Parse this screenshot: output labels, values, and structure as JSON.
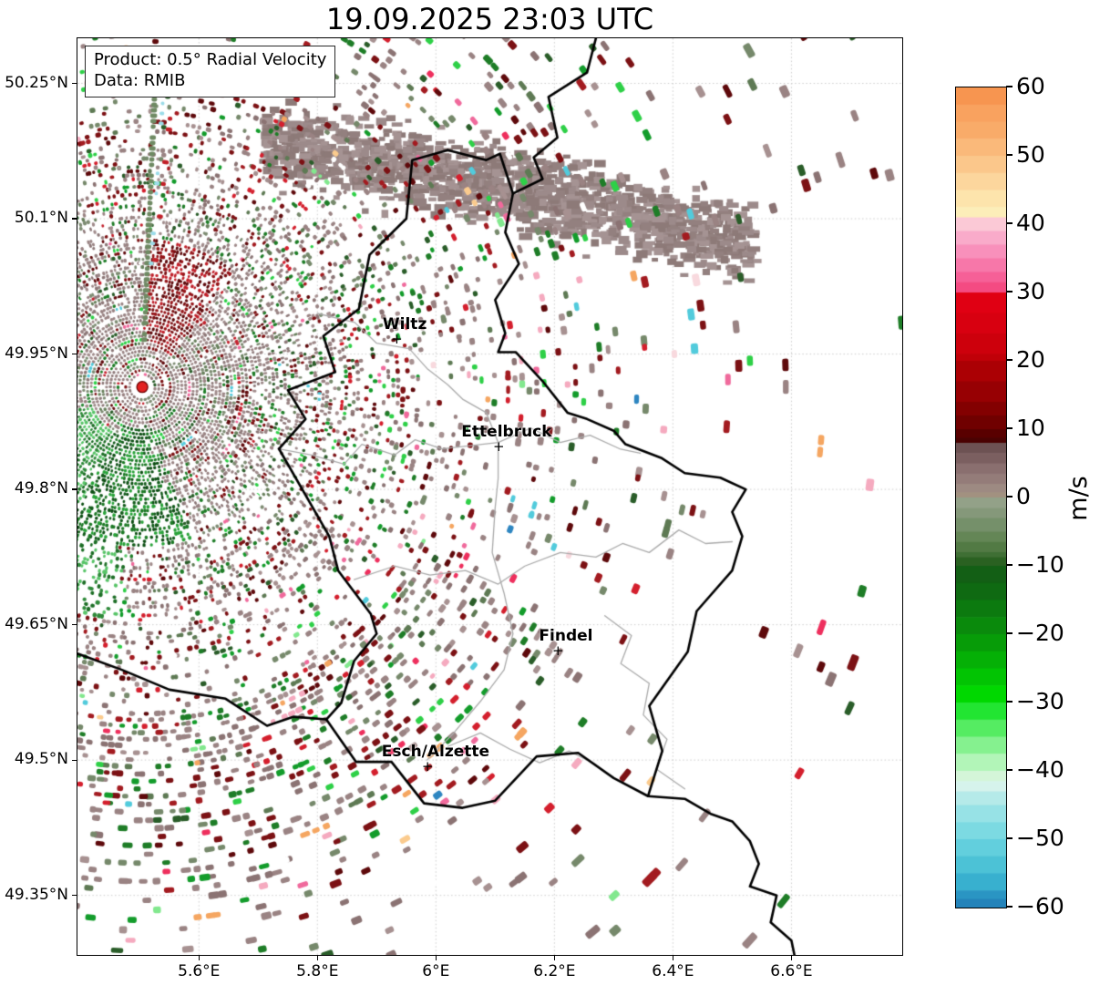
{
  "title": "19.09.2025 23:03 UTC",
  "info_box": {
    "line1": "Product: 0.5° Radial Velocity",
    "line2": "Data: RMIB"
  },
  "chart_data": {
    "type": "radar-velocity-map",
    "title": "19.09.2025 23:03 UTC",
    "product": "0.5° Radial Velocity",
    "data_source": "RMIB",
    "projection": {
      "lon_min": 5.395,
      "lon_max": 6.787,
      "lat_min": 49.284,
      "lat_max": 50.3
    },
    "x_axis": {
      "ticks": [
        {
          "lon": 5.6,
          "label": "5.6°E"
        },
        {
          "lon": 5.8,
          "label": "5.8°E"
        },
        {
          "lon": 6.0,
          "label": "6°E"
        },
        {
          "lon": 6.2,
          "label": "6.2°E"
        },
        {
          "lon": 6.4,
          "label": "6.4°E"
        },
        {
          "lon": 6.6,
          "label": "6.6°E"
        }
      ]
    },
    "y_axis": {
      "ticks": [
        {
          "lat": 50.25,
          "label": "50.25°N"
        },
        {
          "lat": 50.1,
          "label": "50.1°N"
        },
        {
          "lat": 49.95,
          "label": "49.95°N"
        },
        {
          "lat": 49.8,
          "label": "49.8°N"
        },
        {
          "lat": 49.65,
          "label": "49.65°N"
        },
        {
          "lat": 49.5,
          "label": "49.5°N"
        },
        {
          "lat": 49.35,
          "label": "49.35°N"
        }
      ]
    },
    "grid": {
      "color": "#c8c8c8",
      "dash": [
        1.5,
        2.6
      ],
      "width": 0.9
    },
    "cities": [
      {
        "name": "Wiltz",
        "lon": 5.932,
        "lat": 49.966
      },
      {
        "name": "Ettelbruck",
        "lon": 6.104,
        "lat": 49.847
      },
      {
        "name": "Findel",
        "lon": 6.204,
        "lat": 49.62
      },
      {
        "name": "Esch/Alzette",
        "lon": 5.984,
        "lat": 49.492
      }
    ],
    "radar_site": {
      "lon": 5.5044,
      "lat": 49.9135,
      "dot_color": "#e32222",
      "dot_edge": "#6b0000",
      "ring_color": "#ffffff"
    },
    "colorbar": {
      "title": "m/s",
      "vmin": -60,
      "vmax": 60,
      "ticks": [
        [
          60,
          "60"
        ],
        [
          50,
          "50"
        ],
        [
          40,
          "40"
        ],
        [
          30,
          "30"
        ],
        [
          20,
          "20"
        ],
        [
          10,
          "10"
        ],
        [
          0,
          "0"
        ],
        [
          -10,
          "−10"
        ],
        [
          -20,
          "−20"
        ],
        [
          -30,
          "−30"
        ],
        [
          -40,
          "−40"
        ],
        [
          -50,
          "−50"
        ],
        [
          -60,
          "−60"
        ]
      ],
      "stops": [
        [
          60,
          "#f79550"
        ],
        [
          57.5,
          "#f9a25f"
        ],
        [
          55,
          "#f9ab69"
        ],
        [
          52.5,
          "#fab97a"
        ],
        [
          50,
          "#fbc78b"
        ],
        [
          47.5,
          "#fcd69d"
        ],
        [
          45,
          "#fde4ac"
        ],
        [
          42.5,
          "#fceeb9"
        ],
        [
          41,
          "#fbc9d6"
        ],
        [
          39,
          "#f9abca"
        ],
        [
          37,
          "#f890bb"
        ],
        [
          35,
          "#f777a9"
        ],
        [
          33,
          "#f66097"
        ],
        [
          31.5,
          "#f44b82"
        ],
        [
          30,
          "#e00013"
        ],
        [
          27,
          "#d80010"
        ],
        [
          24,
          "#cd000c"
        ],
        [
          21,
          "#c00008"
        ],
        [
          20,
          "#ab0004"
        ],
        [
          17,
          "#970003"
        ],
        [
          14,
          "#830001"
        ],
        [
          12,
          "#700000"
        ],
        [
          10,
          "#590000"
        ],
        [
          8.75,
          "#4a0202"
        ],
        [
          8,
          "#6d5253"
        ],
        [
          6.5,
          "#7b5f60"
        ],
        [
          5,
          "#8a6f6f"
        ],
        [
          3.5,
          "#947c79"
        ],
        [
          2,
          "#9d8a82"
        ],
        [
          0.75,
          "#a29180"
        ],
        [
          0,
          "#93a188"
        ],
        [
          -1.5,
          "#85987a"
        ],
        [
          -3,
          "#75906a"
        ],
        [
          -5,
          "#648656"
        ],
        [
          -6.5,
          "#527a44"
        ],
        [
          -8,
          "#3f6f34"
        ],
        [
          -8.75,
          "#2a6121"
        ],
        [
          -10,
          "#135f15"
        ],
        [
          -12.5,
          "#0f6a12"
        ],
        [
          -15,
          "#0c7a0f"
        ],
        [
          -17.5,
          "#0a8a0c"
        ],
        [
          -20,
          "#079c08"
        ],
        [
          -22.5,
          "#05b006"
        ],
        [
          -25,
          "#02c403"
        ],
        [
          -27.5,
          "#00d800"
        ],
        [
          -30,
          "#22e532"
        ],
        [
          -32.5,
          "#55ec62"
        ],
        [
          -35,
          "#85f18f"
        ],
        [
          -37.5,
          "#b2f5b8"
        ],
        [
          -40,
          "#d4f5d8"
        ],
        [
          -41.5,
          "#d6f3ec"
        ],
        [
          -43,
          "#b5eae9"
        ],
        [
          -45,
          "#97e2e6"
        ],
        [
          -47.5,
          "#7cdae2"
        ],
        [
          -50,
          "#62cfdd"
        ],
        [
          -52.5,
          "#4cc2d6"
        ],
        [
          -55,
          "#38b0cf"
        ],
        [
          -57.5,
          "#2a95c3"
        ],
        [
          -58.75,
          "#2383ba"
        ],
        [
          -60,
          "#1f78b4"
        ]
      ]
    },
    "borders": {
      "country_color": "#000000",
      "country_width": 2.6,
      "region_color": "#ababab",
      "region_width": 1.3,
      "country": [
        [
          [
            6.27,
            50.3
          ],
          [
            6.255,
            50.262
          ],
          [
            6.19,
            50.235
          ],
          [
            6.205,
            50.19
          ],
          [
            6.165,
            50.168
          ],
          [
            6.18,
            50.144
          ],
          [
            6.13,
            50.128
          ]
        ],
        [
          [
            6.02,
            50.176
          ],
          [
            6.085,
            50.165
          ],
          [
            6.108,
            50.172
          ],
          [
            6.13,
            50.128
          ],
          [
            6.117,
            50.085
          ],
          [
            6.14,
            50.05
          ],
          [
            6.1,
            50.01
          ],
          [
            6.117,
            49.973
          ],
          [
            6.105,
            49.952
          ],
          [
            6.135,
            49.952
          ],
          [
            6.18,
            49.92
          ],
          [
            6.222,
            49.885
          ],
          [
            6.255,
            49.878
          ],
          [
            6.3,
            49.865
          ],
          [
            6.32,
            49.85
          ],
          [
            6.38,
            49.835
          ],
          [
            6.42,
            49.818
          ],
          [
            6.48,
            49.813
          ],
          [
            6.523,
            49.8
          ],
          [
            6.5,
            49.775
          ],
          [
            6.517,
            49.748
          ],
          [
            6.5,
            49.71
          ],
          [
            6.44,
            49.665
          ],
          [
            6.425,
            49.62
          ],
          [
            6.36,
            49.56
          ],
          [
            6.382,
            49.51
          ],
          [
            6.358,
            49.46
          ]
        ],
        [
          [
            6.358,
            49.46
          ],
          [
            6.3,
            49.48
          ],
          [
            6.24,
            49.508
          ],
          [
            6.17,
            49.504
          ],
          [
            6.1,
            49.455
          ],
          [
            6.045,
            49.447
          ],
          [
            5.98,
            49.452
          ],
          [
            5.925,
            49.498
          ],
          [
            5.865,
            49.498
          ],
          [
            5.815,
            49.545
          ]
        ],
        [
          [
            5.815,
            49.545
          ],
          [
            5.84,
            49.563
          ],
          [
            5.862,
            49.61
          ],
          [
            5.9,
            49.64
          ],
          [
            5.89,
            49.662
          ],
          [
            5.835,
            49.71
          ],
          [
            5.82,
            49.748
          ],
          [
            5.735,
            49.845
          ],
          [
            5.78,
            49.878
          ],
          [
            5.75,
            49.91
          ],
          [
            5.83,
            49.93
          ],
          [
            5.81,
            49.97
          ],
          [
            5.87,
            50.0
          ],
          [
            5.888,
            50.06
          ],
          [
            5.95,
            50.1
          ],
          [
            5.96,
            50.165
          ],
          [
            6.02,
            50.176
          ]
        ],
        [
          [
            5.815,
            49.545
          ],
          [
            5.76,
            49.548
          ],
          [
            5.715,
            49.538
          ],
          [
            5.645,
            49.568
          ],
          [
            5.55,
            49.578
          ],
          [
            5.47,
            49.6
          ],
          [
            5.395,
            49.618
          ]
        ],
        [
          [
            6.358,
            49.46
          ],
          [
            6.42,
            49.457
          ],
          [
            6.465,
            49.44
          ],
          [
            6.5,
            49.432
          ],
          [
            6.53,
            49.41
          ],
          [
            6.545,
            49.385
          ],
          [
            6.53,
            49.36
          ],
          [
            6.575,
            49.35
          ],
          [
            6.565,
            49.32
          ],
          [
            6.6,
            49.3
          ],
          [
            6.605,
            49.284
          ]
        ]
      ],
      "regions": [
        [
          [
            5.8,
            49.995
          ],
          [
            5.863,
            49.985
          ],
          [
            5.9,
            49.962
          ],
          [
            5.955,
            49.956
          ],
          [
            5.985,
            49.934
          ],
          [
            6.02,
            49.916
          ],
          [
            6.045,
            49.9
          ],
          [
            6.085,
            49.885
          ],
          [
            6.105,
            49.852
          ]
        ],
        [
          [
            5.735,
            49.845
          ],
          [
            5.79,
            49.838
          ],
          [
            5.845,
            49.828
          ],
          [
            5.875,
            49.85
          ],
          [
            5.93,
            49.838
          ],
          [
            5.965,
            49.855
          ],
          [
            6.01,
            49.845
          ],
          [
            6.105,
            49.852
          ]
        ],
        [
          [
            6.105,
            49.852
          ],
          [
            6.16,
            49.868
          ],
          [
            6.21,
            49.852
          ],
          [
            6.26,
            49.86
          ],
          [
            6.31,
            49.845
          ],
          [
            6.345,
            49.84
          ]
        ],
        [
          [
            5.862,
            49.7
          ],
          [
            5.93,
            49.715
          ],
          [
            5.99,
            49.705
          ],
          [
            6.05,
            49.71
          ],
          [
            6.105,
            49.695
          ],
          [
            6.15,
            49.715
          ],
          [
            6.21,
            49.73
          ],
          [
            6.27,
            49.725
          ],
          [
            6.315,
            49.74
          ],
          [
            6.36,
            49.73
          ],
          [
            6.41,
            49.755
          ],
          [
            6.455,
            49.74
          ],
          [
            6.5,
            49.742
          ]
        ],
        [
          [
            5.985,
            49.5
          ],
          [
            6.03,
            49.53
          ],
          [
            6.075,
            49.565
          ],
          [
            6.115,
            49.6
          ],
          [
            6.13,
            49.64
          ],
          [
            6.115,
            49.685
          ],
          [
            6.095,
            49.73
          ],
          [
            6.1,
            49.78
          ],
          [
            6.105,
            49.812
          ],
          [
            6.105,
            49.852
          ]
        ],
        [
          [
            6.02,
            49.515
          ],
          [
            6.075,
            49.53
          ],
          [
            6.125,
            49.512
          ],
          [
            6.175,
            49.497
          ],
          [
            6.225,
            49.51
          ],
          [
            6.27,
            49.495
          ]
        ],
        [
          [
            6.285,
            49.66
          ],
          [
            6.33,
            49.638
          ],
          [
            6.312,
            49.607
          ],
          [
            6.36,
            49.585
          ],
          [
            6.35,
            49.55
          ],
          [
            6.39,
            49.523
          ],
          [
            6.372,
            49.49
          ],
          [
            6.42,
            49.468
          ]
        ]
      ]
    },
    "echoes": {
      "seed": 1337,
      "near_field": {
        "r_solid": 92,
        "r_fade": 195
      },
      "palette_near": [
        [
          "#9a8484",
          30
        ],
        [
          "#8d7878",
          18
        ],
        [
          "#a18c8c",
          12
        ],
        [
          "#7e8c73",
          10
        ],
        [
          "#68805c",
          6
        ],
        [
          "#7c1214",
          7
        ],
        [
          "#5f0a0c",
          4
        ],
        [
          "#1e7d27",
          6
        ],
        [
          "#2a5d29",
          4
        ],
        [
          "#c32430",
          2
        ],
        [
          "#2ed047",
          2
        ],
        [
          "#ffffff",
          5
        ],
        [
          "#f06a9c",
          0.7
        ],
        [
          "#52cbdc",
          0.7
        ]
      ],
      "palette_far": [
        [
          "#9a8383",
          18
        ],
        [
          "#8b7373",
          11
        ],
        [
          "#a79191",
          7
        ],
        [
          "#76896b",
          6
        ],
        [
          "#5e7a54",
          3.5
        ],
        [
          "#7c1114",
          8
        ],
        [
          "#5e090b",
          4.5
        ],
        [
          "#a31b20",
          4
        ],
        [
          "#d41f2d",
          3
        ],
        [
          "#1e7d27",
          5
        ],
        [
          "#2a5d29",
          4
        ],
        [
          "#139c2b",
          3
        ],
        [
          "#2ed047",
          2.2
        ],
        [
          "#ee2f5d",
          1.2,
          300
        ],
        [
          "#f06a9c",
          1.4,
          260
        ],
        [
          "#f5aabf",
          1,
          260
        ],
        [
          "#82e88e",
          1,
          300
        ],
        [
          "#f5a661",
          1.2,
          330
        ],
        [
          "#fbcb8e",
          0.6,
          330
        ],
        [
          "#52cbdc",
          0.8,
          330
        ],
        [
          "#2e86c1",
          0.55,
          380
        ],
        [
          "#f8d9de",
          0.4,
          300
        ],
        [
          "#ffffff",
          1.5
        ]
      ],
      "boosts": [
        [
          30,
          98,
          355,
          585,
          2.6
        ],
        [
          -64,
          -18,
          420,
          1000,
          1.7
        ],
        [
          100,
          150,
          260,
          720,
          1.6
        ],
        [
          -15,
          30,
          620,
          1500,
          0.55
        ]
      ],
      "wedges": [
        {
          "az0": -88,
          "az1": -52,
          "r0": 45,
          "r1": 165,
          "p": 0.75,
          "colors": [
            "#7a1013",
            "#951519",
            "#5f0a0c",
            "#c0202a"
          ]
        },
        {
          "az0": 72,
          "az1": 118,
          "r0": 45,
          "r1": 175,
          "p": 0.7,
          "colors": [
            "#1d7a26",
            "#145c1c",
            "#2aa33a",
            "#0d4f14"
          ]
        },
        {
          "az0": 95,
          "az1": 160,
          "r0": 60,
          "r1": 260,
          "p": 0.25,
          "colors": [
            "#2f8a3a",
            "#1d6e26",
            "#57c467"
          ]
        }
      ],
      "spokes": [
        {
          "az": -87.6,
          "r0": 52,
          "r1": 348,
          "w": 5,
          "step": 6,
          "p": 0.92,
          "color": "#6f8a63"
        },
        {
          "az": -85.9,
          "r0": 125,
          "r1": 340,
          "w": 4,
          "step": 11,
          "p": 0.65,
          "color": "#9bdce9"
        },
        {
          "az": -84.1,
          "r0": 140,
          "r1": 305,
          "w": 4.5,
          "step": 12,
          "p": 0.5,
          "color": "#c22028"
        }
      ],
      "blob": {
        "path": [
          [
            205,
            118
          ],
          [
            330,
            138
          ],
          [
            468,
            162
          ],
          [
            618,
            200
          ],
          [
            742,
            228
          ]
        ],
        "half_w": 40,
        "n": 1400,
        "colors": [
          "#9c8a8a",
          "#93807f",
          "#a59393",
          "#8d7a78"
        ],
        "hole_p": 0.07
      }
    }
  }
}
